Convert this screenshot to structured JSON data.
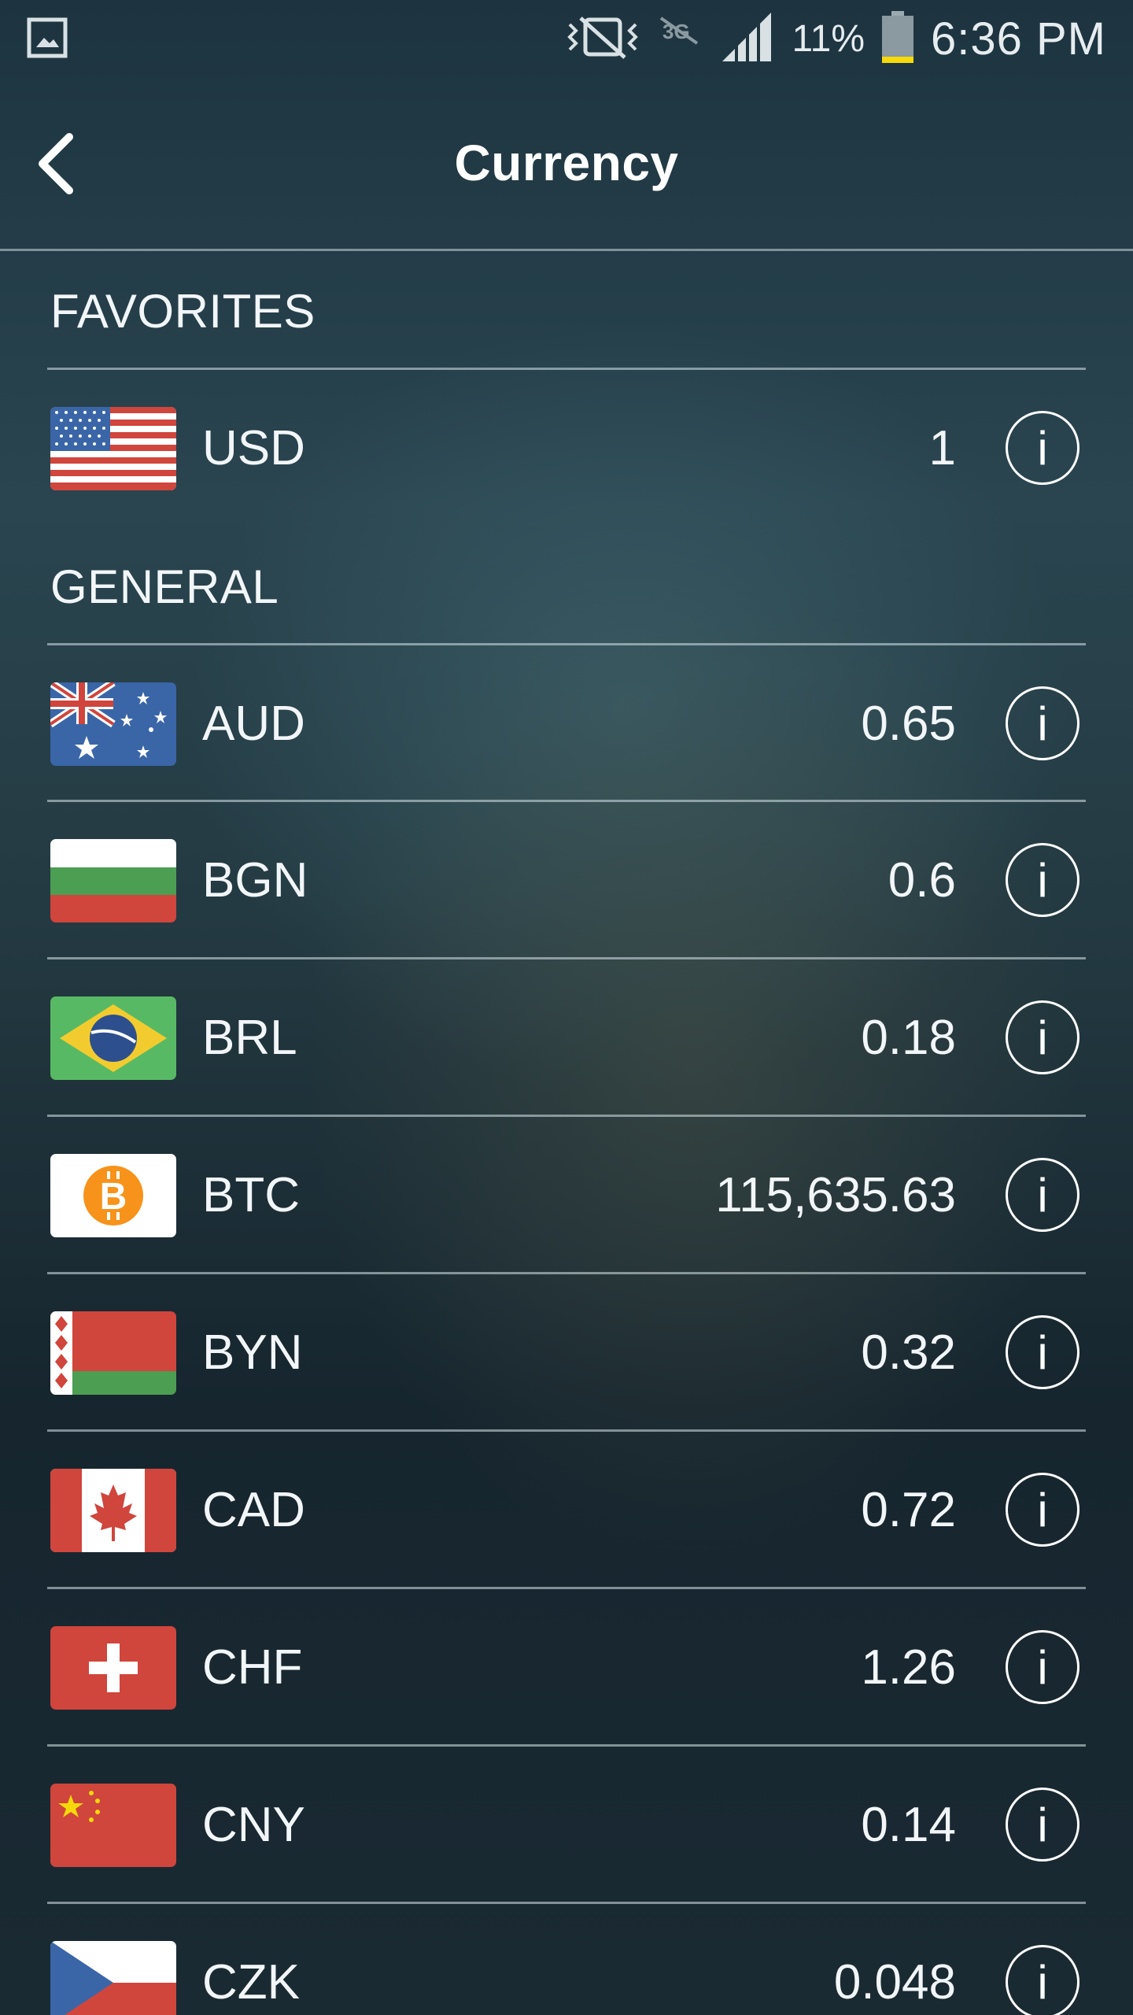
{
  "status_bar": {
    "battery_percent": "11%",
    "time": "6:36 PM",
    "icons": [
      "gallery-icon",
      "vibrate-mute-icon",
      "no-data-icon",
      "signal-icon",
      "battery-icon"
    ]
  },
  "header": {
    "title": "Currency",
    "back_icon": "chevron-left-icon"
  },
  "sections": {
    "favorites": {
      "label": "FAVORITES",
      "items": [
        {
          "code": "USD",
          "value": "1",
          "flag": "us-flag"
        }
      ]
    },
    "general": {
      "label": "GENERAL",
      "items": [
        {
          "code": "AUD",
          "value": "0.65",
          "flag": "au-flag"
        },
        {
          "code": "BGN",
          "value": "0.6",
          "flag": "bg-flag"
        },
        {
          "code": "BRL",
          "value": "0.18",
          "flag": "br-flag"
        },
        {
          "code": "BTC",
          "value": "115,635.63",
          "flag": "bitcoin-logo"
        },
        {
          "code": "BYN",
          "value": "0.32",
          "flag": "by-flag"
        },
        {
          "code": "CAD",
          "value": "0.72",
          "flag": "ca-flag"
        },
        {
          "code": "CHF",
          "value": "1.26",
          "flag": "ch-flag"
        },
        {
          "code": "CNY",
          "value": "0.14",
          "flag": "cn-flag"
        },
        {
          "code": "CZK",
          "value": "0.048",
          "flag": "cz-flag"
        }
      ]
    }
  },
  "info_button_glyph": "i",
  "colors": {
    "battery_level": "#f5d90a",
    "divider": "#c8d7dc",
    "bitcoin": "#f7931a"
  }
}
